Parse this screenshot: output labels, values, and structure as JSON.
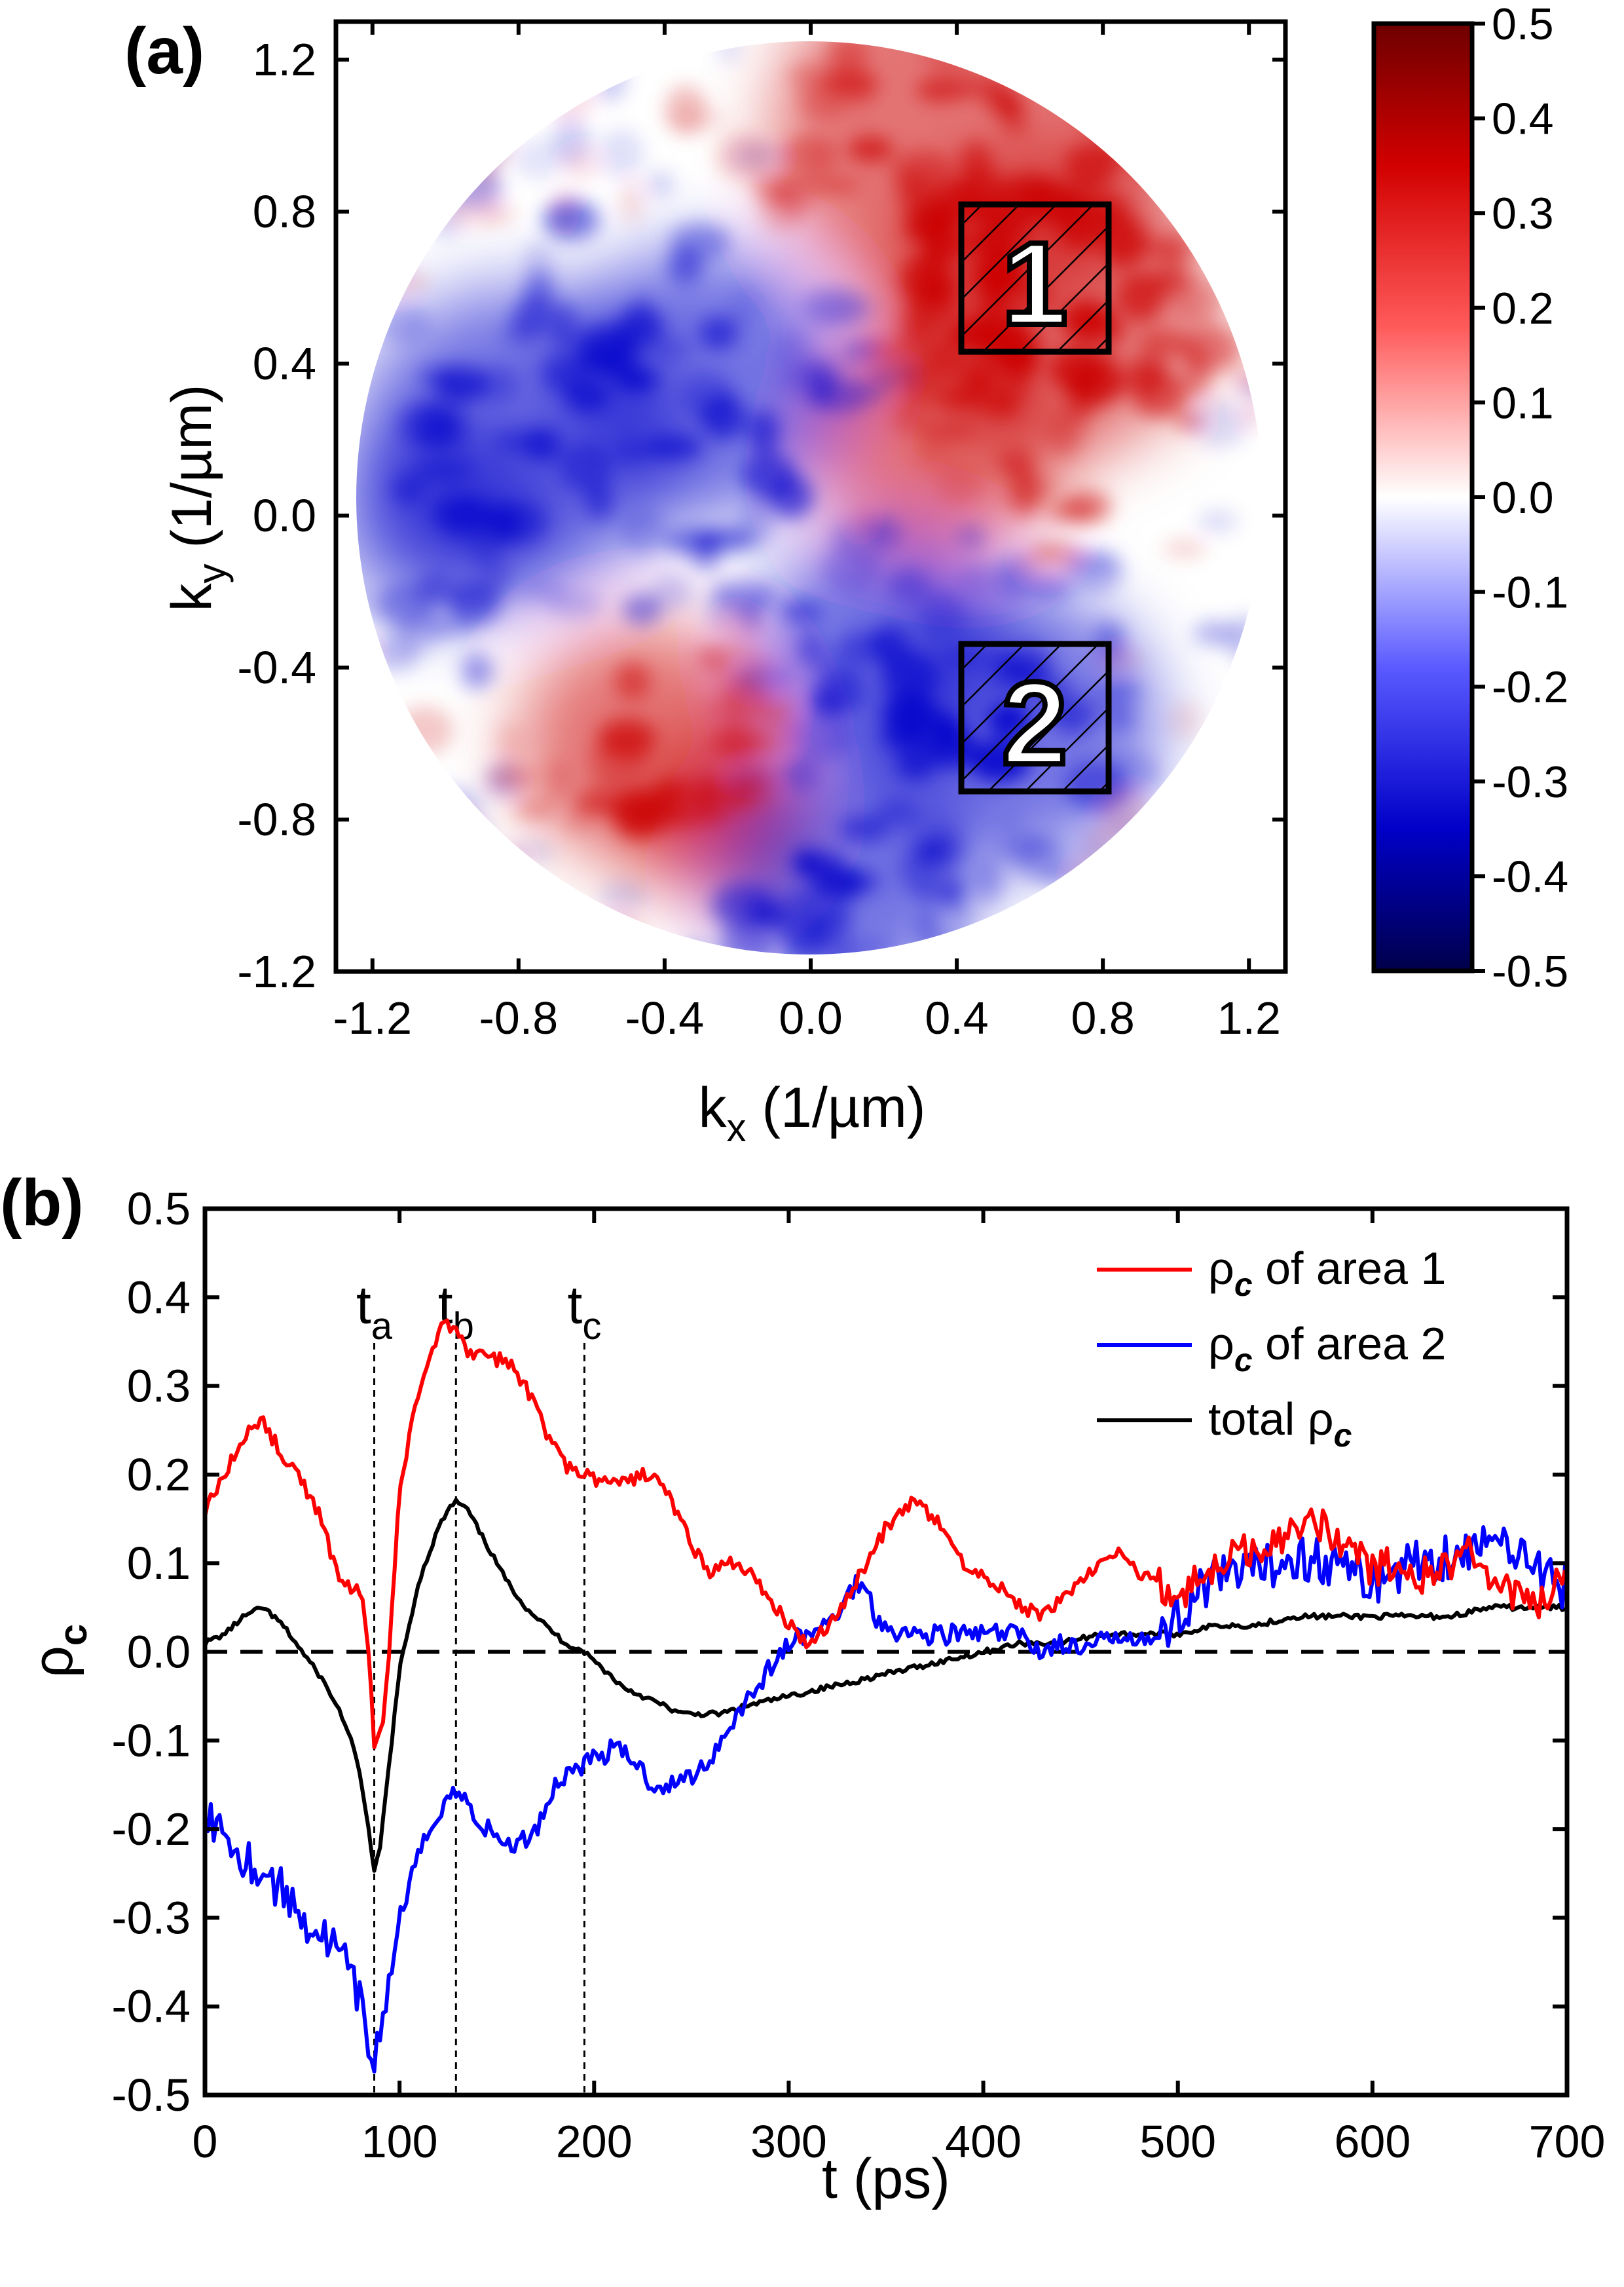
{
  "panel_a": {
    "label": "(a)",
    "xlabel_main": "k",
    "xlabel_sub": "x",
    "xlabel_unit": " (1/µm)",
    "ylabel_main": "k",
    "ylabel_sub": "y",
    "ylabel_unit": " (1/µm)",
    "box1_label": "1",
    "box2_label": "2",
    "colors": {
      "positive": "#cc0000",
      "negative": "#0000cc",
      "neutral": "#ffffff"
    }
  },
  "panel_b": {
    "label": "(b)",
    "xlabel": "t (ps)",
    "ylabel_main": "ρ",
    "ylabel_sub": "c",
    "marker_a_main": "t",
    "marker_a_sub": "a",
    "marker_b_main": "t",
    "marker_b_sub": "b",
    "marker_c_main": "t",
    "marker_c_sub": "c",
    "legend": [
      {
        "prefix": "ρ",
        "sub": "c",
        "suffix": " of area 1",
        "color": "#ff0000"
      },
      {
        "prefix": "ρ",
        "sub": "c",
        "suffix": " of area 2",
        "color": "#0000ff"
      },
      {
        "prefix": "total ρ",
        "sub": "c",
        "suffix": "",
        "color": "#000000"
      }
    ]
  },
  "chart_data": [
    {
      "type": "heatmap",
      "title": "",
      "xlabel": "kx (1/µm)",
      "ylabel": "ky (1/µm)",
      "xlim": [
        -1.3,
        1.3
      ],
      "ylim": [
        -1.2,
        1.3
      ],
      "xticks": [
        "-1.2",
        "-0.8",
        "-0.4",
        "0.0",
        "0.4",
        "0.8",
        "1.2"
      ],
      "yticks": [
        "-1.2",
        "-0.8",
        "-0.4",
        "0.0",
        "0.4",
        "0.8",
        "1.2"
      ],
      "colorbar": {
        "range": [
          -0.5,
          0.5
        ],
        "ticks": [
          "-0.5",
          "-0.4",
          "-0.3",
          "-0.2",
          "-0.1",
          "0.0",
          "0.1",
          "0.2",
          "0.3",
          "0.4",
          "0.5"
        ]
      },
      "regions": [
        {
          "label": "1",
          "kx": [
            0.4,
            0.8
          ],
          "ky": [
            0.4,
            0.8
          ]
        },
        {
          "label": "2",
          "kx": [
            0.4,
            0.8
          ],
          "ky": [
            -0.8,
            -0.4
          ]
        }
      ]
    },
    {
      "type": "line",
      "title": "",
      "xlabel": "t (ps)",
      "ylabel": "ρc",
      "xlim": [
        0,
        700
      ],
      "ylim": [
        -0.5,
        0.5
      ],
      "xticks": [
        "0",
        "100",
        "200",
        "300",
        "400",
        "500",
        "600",
        "700"
      ],
      "yticks": [
        "-0.5",
        "-0.4",
        "-0.3",
        "-0.2",
        "-0.1",
        "0.0",
        "0.1",
        "0.2",
        "0.3",
        "0.4",
        "0.5"
      ],
      "vlines": [
        {
          "label": "ta",
          "x": 87
        },
        {
          "label": "tb",
          "x": 129
        },
        {
          "label": "tc",
          "x": 195
        }
      ],
      "hline": 0,
      "series": [
        {
          "name": "ρc of area 1",
          "color": "#ff0000",
          "x": [
            0,
            10,
            20,
            25,
            30,
            40,
            50,
            60,
            65,
            70,
            75,
            80,
            84,
            87,
            92,
            96,
            100,
            110,
            120,
            125,
            129,
            135,
            145,
            155,
            165,
            175,
            185,
            195,
            205,
            215,
            225,
            230,
            240,
            250,
            260,
            270,
            280,
            290,
            300,
            310,
            320,
            330,
            340,
            350,
            360,
            365,
            375,
            390,
            410,
            420,
            430,
            440,
            450,
            460,
            470,
            480,
            490,
            500,
            510,
            520,
            530,
            545,
            560,
            570,
            580,
            590,
            600,
            610,
            620,
            630,
            640,
            650,
            660,
            670,
            680,
            690,
            700
          ],
          "y": [
            0.16,
            0.2,
            0.24,
            0.26,
            0.26,
            0.22,
            0.19,
            0.15,
            0.11,
            0.08,
            0.07,
            0.07,
            0.0,
            -0.1,
            -0.08,
            0.05,
            0.18,
            0.3,
            0.36,
            0.37,
            0.36,
            0.34,
            0.33,
            0.33,
            0.3,
            0.25,
            0.21,
            0.2,
            0.19,
            0.19,
            0.2,
            0.2,
            0.17,
            0.12,
            0.09,
            0.1,
            0.09,
            0.06,
            0.03,
            0.01,
            0.03,
            0.06,
            0.1,
            0.14,
            0.16,
            0.17,
            0.15,
            0.1,
            0.07,
            0.05,
            0.04,
            0.06,
            0.08,
            0.1,
            0.11,
            0.09,
            0.08,
            0.06,
            0.08,
            0.1,
            0.11,
            0.12,
            0.14,
            0.15,
            0.13,
            0.12,
            0.09,
            0.1,
            0.08,
            0.09,
            0.1,
            0.11,
            0.08,
            0.07,
            0.05,
            0.06,
            0.09
          ]
        },
        {
          "name": "ρc of area 2",
          "color": "#0000ff",
          "x": [
            0,
            10,
            20,
            30,
            40,
            50,
            60,
            70,
            75,
            80,
            84,
            87,
            90,
            95,
            100,
            110,
            120,
            125,
            130,
            135,
            140,
            150,
            160,
            170,
            180,
            190,
            200,
            210,
            220,
            230,
            240,
            250,
            260,
            270,
            280,
            290,
            300,
            310,
            320,
            330,
            335,
            340,
            345,
            350,
            360,
            370,
            380,
            390,
            400,
            410,
            420,
            430,
            440,
            450,
            460,
            470,
            480,
            490,
            500,
            510,
            520,
            540,
            560,
            580,
            600,
            620,
            640,
            660,
            680,
            690,
            700
          ],
          "y": [
            -0.18,
            -0.2,
            -0.23,
            -0.25,
            -0.27,
            -0.3,
            -0.32,
            -0.34,
            -0.37,
            -0.4,
            -0.44,
            -0.46,
            -0.43,
            -0.37,
            -0.3,
            -0.23,
            -0.18,
            -0.16,
            -0.16,
            -0.17,
            -0.19,
            -0.21,
            -0.22,
            -0.2,
            -0.15,
            -0.13,
            -0.12,
            -0.11,
            -0.12,
            -0.15,
            -0.15,
            -0.14,
            -0.12,
            -0.08,
            -0.05,
            -0.02,
            0.01,
            0.02,
            0.03,
            0.06,
            0.08,
            0.07,
            0.04,
            0.03,
            0.02,
            0.02,
            0.02,
            0.02,
            0.02,
            0.02,
            0.02,
            0.0,
            0.01,
            0.0,
            0.01,
            0.02,
            0.02,
            0.01,
            0.04,
            0.07,
            0.08,
            0.09,
            0.11,
            0.1,
            0.08,
            0.1,
            0.11,
            0.12,
            0.12,
            0.08,
            0.07
          ]
        },
        {
          "name": "total ρc",
          "color": "#000000",
          "x": [
            0,
            10,
            20,
            30,
            40,
            50,
            60,
            70,
            75,
            80,
            84,
            87,
            90,
            95,
            100,
            110,
            120,
            125,
            129,
            135,
            145,
            155,
            165,
            175,
            185,
            195,
            205,
            215,
            225,
            235,
            245,
            255,
            265,
            280,
            300,
            320,
            340,
            360,
            380,
            400,
            420,
            440,
            460,
            480,
            500,
            520,
            540,
            560,
            580,
            600,
            620,
            640,
            660,
            680,
            700
          ],
          "y": [
            0.01,
            0.02,
            0.04,
            0.05,
            0.03,
            0.0,
            -0.03,
            -0.07,
            -0.1,
            -0.14,
            -0.2,
            -0.25,
            -0.22,
            -0.12,
            -0.02,
            0.08,
            0.14,
            0.16,
            0.17,
            0.16,
            0.12,
            0.08,
            0.05,
            0.03,
            0.01,
            0.0,
            -0.02,
            -0.04,
            -0.05,
            -0.06,
            -0.07,
            -0.07,
            -0.07,
            -0.06,
            -0.05,
            -0.04,
            -0.03,
            -0.02,
            -0.01,
            0.0,
            0.01,
            0.01,
            0.02,
            0.02,
            0.02,
            0.03,
            0.03,
            0.04,
            0.04,
            0.04,
            0.04,
            0.04,
            0.05,
            0.05,
            0.05
          ]
        }
      ]
    }
  ]
}
